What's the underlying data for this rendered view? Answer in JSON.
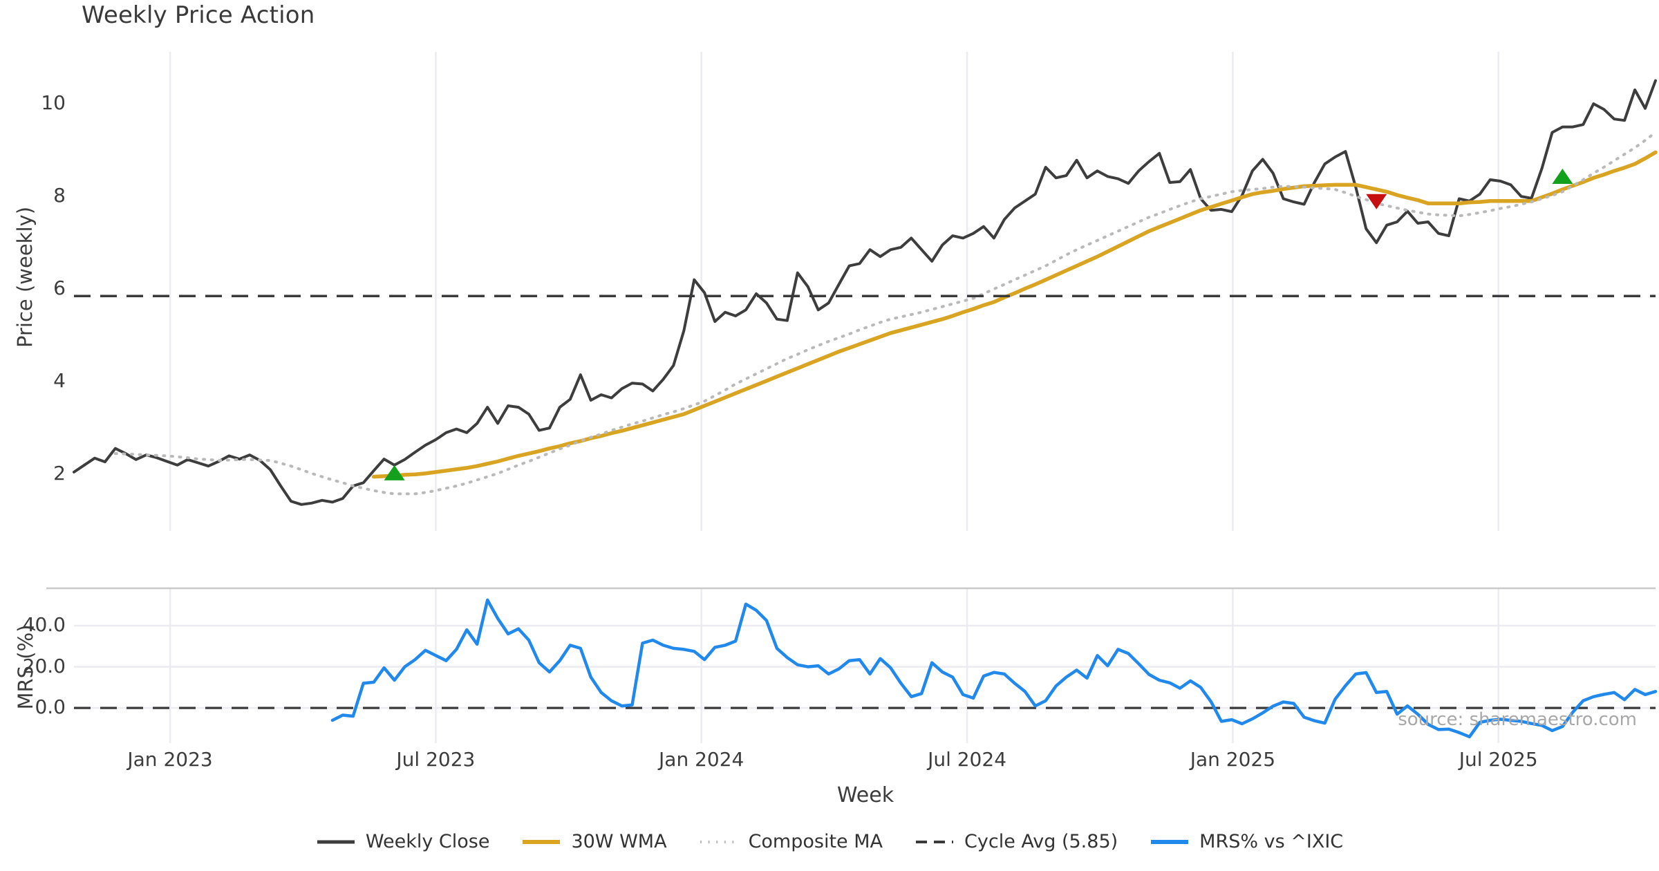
{
  "title": "Weekly Price Action",
  "source_note": "source: sharemaestro.com",
  "colors": {
    "close": "#3d3d3d",
    "wma": "#d9a421",
    "composite": "#b9b9b9",
    "cycle": "#3a3a3a",
    "mrs": "#2189ec",
    "buy": "#12a01d",
    "sell": "#c80f0f",
    "grid": "#ebebf1",
    "spine": "#c9c9c9"
  },
  "legend": {
    "position": "bottom-center",
    "items": [
      {
        "label": "Weekly Close",
        "style": "solid",
        "color": "close",
        "thickness": 5
      },
      {
        "label": "30W WMA",
        "style": "solid",
        "color": "wma",
        "thickness": 6
      },
      {
        "label": "Composite MA",
        "style": "dotted",
        "color": "composite",
        "thickness": 4
      },
      {
        "label": "Cycle Avg (5.85)",
        "style": "dashed",
        "color": "cycle",
        "thickness": 4
      },
      {
        "label": "MRS% vs ^IXIC",
        "style": "solid",
        "color": "mrs",
        "thickness": 6
      }
    ]
  },
  "chart_data": [
    {
      "type": "line",
      "panel": "price",
      "title": "Weekly Price Action",
      "ylabel": "Price (weekly)",
      "xlabel": "Week",
      "ylim": [
        0.78,
        11.12
      ],
      "yticks": [
        {
          "v": 2,
          "label": "2"
        },
        {
          "v": 4,
          "label": "4"
        },
        {
          "v": 6,
          "label": "6"
        },
        {
          "v": 8,
          "label": "8"
        },
        {
          "v": 10,
          "label": "10"
        }
      ],
      "grid": "vertical",
      "x_axis": {
        "unit": "week",
        "start_date": "2022-10-31",
        "step_days": 7,
        "n_weeks": 154,
        "show_tick_labels": false,
        "ticks": [
          {
            "week": 9.3,
            "label": "Jan 2023"
          },
          {
            "week": 35.0,
            "label": "Jul 2023"
          },
          {
            "week": 60.7,
            "label": "Jan 2024"
          },
          {
            "week": 86.4,
            "label": "Jul 2024"
          },
          {
            "week": 112.1,
            "label": "Jan 2025"
          },
          {
            "week": 137.8,
            "label": "Jul 2025"
          }
        ]
      },
      "series": [
        {
          "name": "Weekly Close",
          "color": "close",
          "style": "solid",
          "width": 4,
          "start_week": 0,
          "values": [
            2.05,
            2.2,
            2.35,
            2.27,
            2.56,
            2.45,
            2.32,
            2.42,
            2.36,
            2.28,
            2.2,
            2.32,
            2.25,
            2.18,
            2.28,
            2.4,
            2.33,
            2.42,
            2.3,
            2.1,
            1.75,
            1.42,
            1.35,
            1.38,
            1.44,
            1.4,
            1.48,
            1.75,
            1.82,
            2.08,
            2.33,
            2.2,
            2.32,
            2.48,
            2.63,
            2.75,
            2.9,
            2.98,
            2.9,
            3.1,
            3.45,
            3.1,
            3.48,
            3.45,
            3.3,
            2.95,
            3.0,
            3.45,
            3.62,
            4.15,
            3.6,
            3.72,
            3.65,
            3.85,
            3.97,
            3.95,
            3.8,
            4.05,
            4.35,
            5.1,
            6.2,
            5.92,
            5.3,
            5.5,
            5.42,
            5.55,
            5.9,
            5.7,
            5.35,
            5.32,
            6.35,
            6.05,
            5.55,
            5.7,
            6.1,
            6.5,
            6.55,
            6.85,
            6.7,
            6.85,
            6.9,
            7.1,
            6.85,
            6.6,
            6.95,
            7.15,
            7.1,
            7.2,
            7.35,
            7.1,
            7.5,
            7.75,
            7.9,
            8.05,
            8.63,
            8.4,
            8.45,
            8.78,
            8.4,
            8.55,
            8.43,
            8.38,
            8.28,
            8.55,
            8.75,
            8.93,
            8.3,
            8.32,
            8.58,
            7.95,
            7.7,
            7.72,
            7.67,
            8.02,
            8.55,
            8.8,
            8.5,
            7.95,
            7.88,
            7.83,
            8.3,
            8.7,
            8.85,
            8.97,
            8.2,
            7.3,
            7.0,
            7.38,
            7.45,
            7.68,
            7.42,
            7.45,
            7.2,
            7.15,
            7.95,
            7.9,
            8.05,
            8.36,
            8.33,
            8.25,
            8.0,
            7.96,
            8.6,
            9.38,
            9.5,
            9.5,
            9.55,
            10.0,
            9.88,
            9.67,
            9.64,
            10.3,
            9.9,
            10.5
          ]
        },
        {
          "name": "30W WMA",
          "color": "wma",
          "style": "solid",
          "width": 5.5,
          "start_week": 29,
          "values": [
            1.95,
            1.96,
            1.97,
            1.99,
            2.0,
            2.02,
            2.05,
            2.08,
            2.11,
            2.14,
            2.18,
            2.23,
            2.28,
            2.34,
            2.4,
            2.45,
            2.5,
            2.56,
            2.61,
            2.67,
            2.72,
            2.78,
            2.83,
            2.89,
            2.94,
            3.0,
            3.06,
            3.12,
            3.18,
            3.24,
            3.3,
            3.39,
            3.48,
            3.57,
            3.66,
            3.75,
            3.84,
            3.93,
            4.02,
            4.11,
            4.2,
            4.29,
            4.38,
            4.47,
            4.56,
            4.65,
            4.73,
            4.81,
            4.89,
            4.97,
            5.05,
            5.11,
            5.17,
            5.23,
            5.29,
            5.35,
            5.42,
            5.5,
            5.57,
            5.65,
            5.72,
            5.82,
            5.91,
            6.01,
            6.1,
            6.2,
            6.3,
            6.4,
            6.5,
            6.6,
            6.7,
            6.81,
            6.92,
            7.03,
            7.14,
            7.25,
            7.34,
            7.43,
            7.52,
            7.61,
            7.7,
            7.77,
            7.84,
            7.91,
            7.98,
            8.05,
            8.09,
            8.12,
            8.16,
            8.19,
            8.22,
            8.23,
            8.24,
            8.25,
            8.25,
            8.25,
            8.2,
            8.15,
            8.1,
            8.03,
            7.97,
            7.92,
            7.85,
            7.85,
            7.85,
            7.85,
            7.87,
            7.88,
            7.9,
            7.9,
            7.9,
            7.9,
            7.9,
            7.98,
            8.06,
            8.15,
            8.23,
            8.31,
            8.4,
            8.47,
            8.55,
            8.62,
            8.7,
            8.82,
            8.95
          ]
        },
        {
          "name": "Composite MA",
          "color": "composite",
          "style": "dotted",
          "width": 4,
          "start_week": 4,
          "values": [
            2.45,
            2.44,
            2.43,
            2.42,
            2.41,
            2.4,
            2.38,
            2.36,
            2.33,
            2.32,
            2.3,
            2.31,
            2.32,
            2.32,
            2.31,
            2.3,
            2.24,
            2.18,
            2.1,
            2.02,
            1.95,
            1.88,
            1.82,
            1.75,
            1.7,
            1.65,
            1.61,
            1.58,
            1.58,
            1.58,
            1.61,
            1.65,
            1.7,
            1.75,
            1.81,
            1.88,
            1.95,
            2.02,
            2.11,
            2.2,
            2.28,
            2.37,
            2.46,
            2.55,
            2.63,
            2.72,
            2.8,
            2.87,
            2.95,
            3.02,
            3.09,
            3.15,
            3.22,
            3.29,
            3.35,
            3.42,
            3.5,
            3.58,
            3.7,
            3.82,
            3.95,
            4.06,
            4.17,
            4.28,
            4.39,
            4.5,
            4.59,
            4.69,
            4.78,
            4.87,
            4.95,
            5.03,
            5.12,
            5.2,
            5.28,
            5.35,
            5.4,
            5.45,
            5.5,
            5.56,
            5.62,
            5.68,
            5.74,
            5.8,
            5.9,
            6.0,
            6.1,
            6.2,
            6.3,
            6.4,
            6.5,
            6.62,
            6.74,
            6.85,
            6.95,
            7.05,
            7.15,
            7.25,
            7.35,
            7.45,
            7.55,
            7.63,
            7.72,
            7.8,
            7.88,
            7.95,
            8.0,
            8.05,
            8.1,
            8.13,
            8.15,
            8.17,
            8.2,
            8.22,
            8.21,
            8.2,
            8.18,
            8.17,
            8.15,
            8.08,
            8.0,
            7.93,
            7.85,
            7.8,
            7.75,
            7.7,
            7.66,
            7.62,
            7.6,
            7.59,
            7.58,
            7.61,
            7.65,
            7.69,
            7.74,
            7.78,
            7.83,
            7.88,
            7.95,
            8.02,
            8.1,
            8.23,
            8.36,
            8.5,
            8.63,
            8.77,
            8.91,
            9.05,
            9.21,
            9.38
          ]
        },
        {
          "name": "Cycle Avg (5.85)",
          "color": "cycle",
          "style": "dashed",
          "width": 3.5,
          "constant": 5.85
        }
      ],
      "markers": [
        {
          "week": 31,
          "value": 2.02,
          "type": "buy-signal",
          "shape": "triangle-up",
          "color": "buy"
        },
        {
          "week": 126,
          "value": 7.9,
          "type": "sell-signal",
          "shape": "triangle-down",
          "color": "sell"
        },
        {
          "week": 144,
          "value": 8.42,
          "type": "buy-signal",
          "shape": "triangle-up",
          "color": "buy"
        }
      ]
    },
    {
      "type": "line",
      "panel": "mrs",
      "ylabel": "MRS (%)",
      "ylim": [
        -17.1,
        58.2
      ],
      "yticks": [
        {
          "v": 0,
          "label": "0.0"
        },
        {
          "v": 20,
          "label": "20.0"
        },
        {
          "v": 40,
          "label": "40.0"
        }
      ],
      "grid": "both",
      "zero_line": {
        "value": 0,
        "style": "dashed",
        "color": "cycle"
      },
      "x_axis": {
        "unit": "week",
        "show_tick_labels": true,
        "ticks": [
          {
            "week": 9.3,
            "label": "Jan 2023"
          },
          {
            "week": 35.0,
            "label": "Jul 2023"
          },
          {
            "week": 60.7,
            "label": "Jan 2024"
          },
          {
            "week": 86.4,
            "label": "Jul 2024"
          },
          {
            "week": 112.1,
            "label": "Jan 2025"
          },
          {
            "week": 137.8,
            "label": "Jul 2025"
          }
        ]
      },
      "series": [
        {
          "name": "MRS% vs ^IXIC",
          "color": "mrs",
          "style": "solid",
          "width": 4.5,
          "start_week": 25,
          "values": [
            -6,
            -3.5,
            -4,
            12,
            12.5,
            19.5,
            13.5,
            20,
            23.5,
            28,
            25.5,
            23,
            28.5,
            38,
            31,
            52.5,
            43.5,
            36,
            38.5,
            33,
            22,
            17.5,
            23,
            30.5,
            29,
            15,
            7.5,
            3.5,
            1,
            1.5,
            31.5,
            33,
            30.5,
            29,
            28.5,
            27.5,
            23.5,
            29.5,
            30.5,
            32.5,
            50.5,
            47.5,
            42.5,
            29,
            24.5,
            21,
            20,
            20.5,
            16.5,
            19,
            23,
            23.5,
            16.5,
            24,
            19.5,
            12,
            5.5,
            7,
            22,
            17.5,
            15,
            6.5,
            4.8,
            15.5,
            17.3,
            16.5,
            12,
            8,
            1,
            3.5,
            10.7,
            15,
            18.4,
            14.5,
            25.5,
            20.5,
            28.5,
            26.5,
            21.5,
            16.3,
            13.5,
            12.2,
            9.6,
            13.2,
            10,
            3,
            -6.5,
            -5.7,
            -7.7,
            -5.3,
            -2.4,
            0.9,
            2.9,
            2.2,
            -4.5,
            -6.2,
            -7.4,
            4.2,
            10.8,
            16.5,
            17.2,
            7.5,
            8,
            -3,
            1,
            -3,
            -8,
            -10.5,
            -10.3,
            -12,
            -14,
            -7,
            -6,
            -5.5,
            -6,
            -6.5,
            -7.6,
            -8.5,
            -11,
            -9,
            -2,
            3.5,
            5.5,
            6.6,
            7.5,
            4,
            9,
            6.5,
            8
          ]
        }
      ]
    }
  ]
}
